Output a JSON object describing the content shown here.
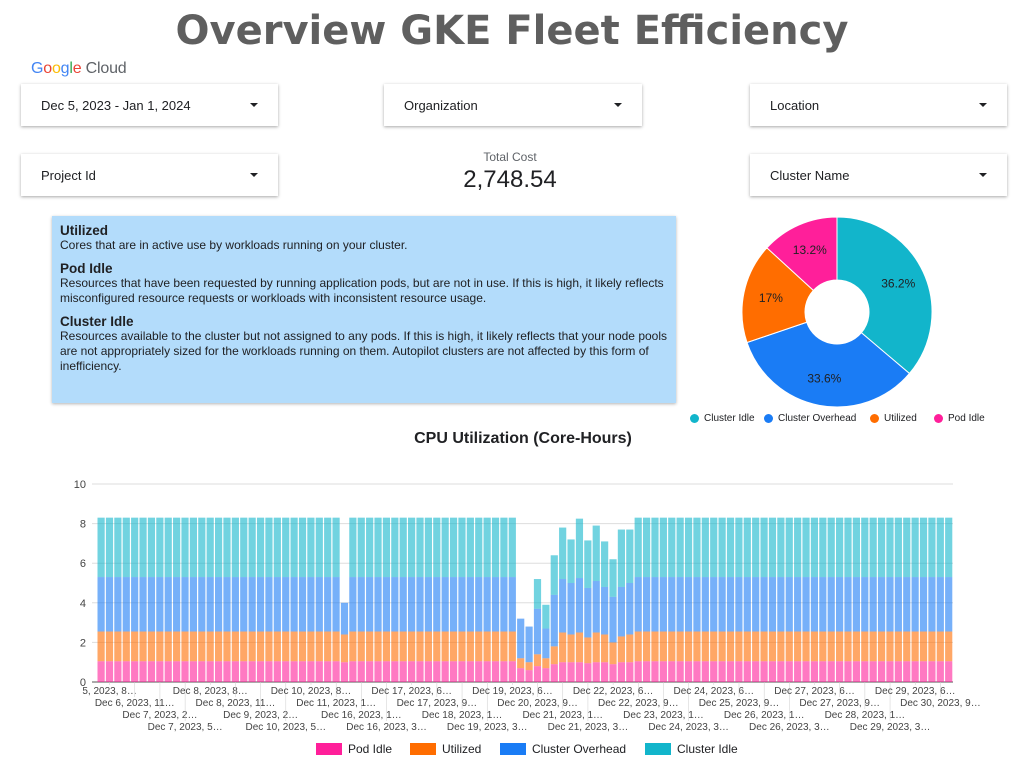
{
  "header": {
    "title": "Overview GKE Fleet Efficiency",
    "logo": "Google Cloud"
  },
  "filters": {
    "date_range": "Dec 5, 2023 - Jan 1, 2024",
    "organization": "Organization",
    "location": "Location",
    "project_id": "Project Id",
    "cluster_name": "Cluster Name"
  },
  "kpi": {
    "label": "Total Cost",
    "value": "2,748.54"
  },
  "info": [
    {
      "heading": "Utilized",
      "text": "Cores that are in active use by workloads running on your cluster."
    },
    {
      "heading": "Pod Idle",
      "text": "Resources that have been requested by running application pods, but are not in use. If this is high, it likely reflects misconfigured resource requests or workloads with inconsistent resource usage."
    },
    {
      "heading": "Cluster Idle",
      "text": "Resources available to the cluster but not assigned to any pods. If this is high, it likely reflects that your node pools are not appropriately sized for the workloads running on them. Autopilot clusters are not affected by this form of inefficiency."
    }
  ],
  "colors": {
    "pod_idle": "#ff1f9a",
    "utilized": "#ff6d00",
    "cluster_overhead": "#1a7cf5",
    "cluster_idle": "#12b5cb"
  },
  "chart_data": [
    {
      "type": "pie",
      "donut": true,
      "slices": [
        {
          "name": "Cluster Idle",
          "value": 36.2,
          "label": "36.2%",
          "color": "#12b5cb"
        },
        {
          "name": "Cluster Overhead",
          "value": 33.6,
          "label": "33.6%",
          "color": "#1a7cf5"
        },
        {
          "name": "Utilized",
          "value": 17,
          "label": "17%",
          "color": "#ff6d00"
        },
        {
          "name": "Pod Idle",
          "value": 13.2,
          "label": "13.2%",
          "color": "#ff1f9a"
        }
      ],
      "legend": "bottom"
    },
    {
      "type": "bar",
      "stacked": true,
      "title": "CPU Utilization (Core-Hours)",
      "ylim": [
        0,
        10
      ],
      "yticks": [
        "0",
        "2",
        "4",
        "6",
        "8",
        "10"
      ],
      "grid": true,
      "legend": "bottom",
      "xtick_labels": [
        "5, 2023, 8…",
        "Dec 6, 2023, 11…",
        "Dec 7, 2023, 2…",
        "Dec 7, 2023, 5…",
        "Dec 8, 2023, 8…",
        "Dec 8, 2023, 11…",
        "Dec 9, 2023, 2…",
        "Dec 10, 2023, 5…",
        "Dec 10, 2023, 8…",
        "Dec 11, 2023, 1…",
        "Dec 16, 2023, 1…",
        "Dec 16, 2023, 3…",
        "Dec 17, 2023, 6…",
        "Dec 17, 2023, 9…",
        "Dec 18, 2023, 1…",
        "Dec 19, 2023, 3…",
        "Dec 19, 2023, 6…",
        "Dec 20, 2023, 9…",
        "Dec 21, 2023, 1…",
        "Dec 21, 2023, 3…",
        "Dec 22, 2023, 6…",
        "Dec 22, 2023, 9…",
        "Dec 23, 2023, 1…",
        "Dec 24, 2023, 3…",
        "Dec 24, 2023, 6…",
        "Dec 25, 2023, 9…",
        "Dec 26, 2023, 1…",
        "Dec 26, 2023, 3…",
        "Dec 27, 2023, 6…",
        "Dec 27, 2023, 9…",
        "Dec 28, 2023, 1…",
        "Dec 29, 2023, 3…",
        "Dec 29, 2023, 6…",
        "Dec 30, 2023, 9…"
      ],
      "series": [
        {
          "name": "Pod Idle",
          "color": "#ff1f9a",
          "values": [
            1.05,
            1.05,
            1.05,
            1.05,
            1.05,
            1.05,
            1.05,
            1.05,
            1.05,
            1.05,
            1.05,
            1.05,
            1.05,
            1.05,
            1.05,
            1.05,
            1.05,
            1.05,
            1.05,
            1.05,
            1.05,
            1.05,
            1.05,
            1.05,
            1.05,
            1.05,
            1.05,
            1.05,
            1.05,
            1.0,
            1.05,
            1.05,
            1.05,
            1.05,
            1.05,
            1.05,
            1.05,
            1.05,
            1.05,
            1.05,
            1.05,
            1.05,
            1.05,
            1.05,
            1.05,
            1.05,
            1.05,
            1.05,
            1.05,
            1.05,
            0.7,
            0.6,
            0.8,
            0.7,
            0.9,
            1.0,
            1.0,
            1.0,
            0.95,
            1.0,
            1.0,
            0.9,
            1.0,
            1.0,
            1.05,
            1.05,
            1.05,
            1.05,
            1.05,
            1.05,
            1.05,
            1.05,
            1.05,
            1.05,
            1.05,
            1.05,
            1.05,
            1.05,
            1.05,
            1.05,
            1.05,
            1.05,
            1.05,
            1.05,
            1.05,
            1.05,
            1.05,
            1.05,
            1.05,
            1.05,
            1.05,
            1.05,
            1.05,
            1.05,
            1.05,
            1.05,
            1.05,
            1.05,
            1.05,
            1.05,
            1.05,
            1.05
          ]
        },
        {
          "name": "Utilized",
          "color": "#ff6d00",
          "values": [
            1.5,
            1.5,
            1.5,
            1.5,
            1.5,
            1.5,
            1.5,
            1.5,
            1.5,
            1.5,
            1.5,
            1.5,
            1.5,
            1.5,
            1.5,
            1.5,
            1.5,
            1.5,
            1.5,
            1.5,
            1.5,
            1.5,
            1.5,
            1.5,
            1.5,
            1.5,
            1.5,
            1.5,
            1.5,
            1.4,
            1.5,
            1.5,
            1.5,
            1.5,
            1.5,
            1.5,
            1.5,
            1.5,
            1.5,
            1.5,
            1.5,
            1.5,
            1.5,
            1.5,
            1.5,
            1.5,
            1.5,
            1.5,
            1.5,
            1.5,
            0.5,
            0.4,
            0.6,
            0.5,
            0.9,
            1.5,
            1.4,
            1.5,
            1.3,
            1.5,
            1.4,
            1.1,
            1.3,
            1.4,
            1.5,
            1.5,
            1.5,
            1.5,
            1.5,
            1.5,
            1.5,
            1.5,
            1.5,
            1.5,
            1.5,
            1.5,
            1.5,
            1.5,
            1.5,
            1.5,
            1.5,
            1.5,
            1.5,
            1.5,
            1.5,
            1.5,
            1.5,
            1.5,
            1.5,
            1.5,
            1.5,
            1.5,
            1.5,
            1.5,
            1.5,
            1.5,
            1.5,
            1.5,
            1.5,
            1.5,
            1.5,
            1.5
          ]
        },
        {
          "name": "Cluster Overhead",
          "color": "#1a7cf5",
          "values": [
            2.75,
            2.75,
            2.75,
            2.75,
            2.75,
            2.75,
            2.75,
            2.75,
            2.75,
            2.75,
            2.75,
            2.75,
            2.75,
            2.75,
            2.75,
            2.75,
            2.75,
            2.75,
            2.75,
            2.75,
            2.75,
            2.75,
            2.75,
            2.75,
            2.75,
            2.75,
            2.75,
            2.75,
            2.75,
            1.6,
            2.75,
            2.75,
            2.75,
            2.75,
            2.75,
            2.75,
            2.75,
            2.75,
            2.75,
            2.75,
            2.75,
            2.75,
            2.75,
            2.75,
            2.75,
            2.75,
            2.75,
            2.75,
            2.75,
            2.75,
            2.0,
            1.8,
            2.3,
            1.5,
            2.6,
            2.7,
            2.6,
            2.75,
            2.5,
            2.6,
            2.4,
            2.3,
            2.5,
            2.6,
            2.75,
            2.75,
            2.75,
            2.75,
            2.75,
            2.75,
            2.75,
            2.75,
            2.75,
            2.75,
            2.75,
            2.75,
            2.75,
            2.75,
            2.75,
            2.75,
            2.75,
            2.75,
            2.75,
            2.75,
            2.75,
            2.75,
            2.75,
            2.75,
            2.75,
            2.75,
            2.75,
            2.75,
            2.75,
            2.75,
            2.75,
            2.75,
            2.75,
            2.75,
            2.75,
            2.75,
            2.75,
            2.75
          ]
        },
        {
          "name": "Cluster Idle",
          "color": "#12b5cb",
          "values": [
            3.0,
            3.0,
            3.0,
            3.0,
            3.0,
            3.0,
            3.0,
            3.0,
            3.0,
            3.0,
            3.0,
            3.0,
            3.0,
            3.0,
            3.0,
            3.0,
            3.0,
            3.0,
            3.0,
            3.0,
            3.0,
            3.0,
            3.0,
            3.0,
            3.0,
            3.0,
            3.0,
            3.0,
            3.0,
            0.0,
            3.0,
            3.0,
            3.0,
            3.0,
            3.0,
            3.0,
            3.0,
            3.0,
            3.0,
            3.0,
            3.0,
            3.0,
            3.0,
            3.0,
            3.0,
            3.0,
            3.0,
            3.0,
            3.0,
            3.0,
            0.0,
            0.0,
            1.5,
            1.2,
            2.0,
            2.6,
            2.2,
            3.0,
            2.4,
            2.8,
            2.3,
            1.9,
            2.9,
            2.7,
            3.0,
            3.0,
            3.0,
            3.0,
            3.0,
            3.0,
            3.0,
            3.0,
            3.0,
            3.0,
            3.0,
            3.0,
            3.0,
            3.0,
            3.0,
            3.0,
            3.0,
            3.0,
            3.0,
            3.0,
            3.0,
            3.0,
            3.0,
            3.0,
            3.0,
            3.0,
            3.0,
            3.0,
            3.0,
            3.0,
            3.0,
            3.0,
            3.0,
            3.0,
            3.0,
            3.0,
            3.0,
            3.0
          ]
        }
      ]
    }
  ]
}
